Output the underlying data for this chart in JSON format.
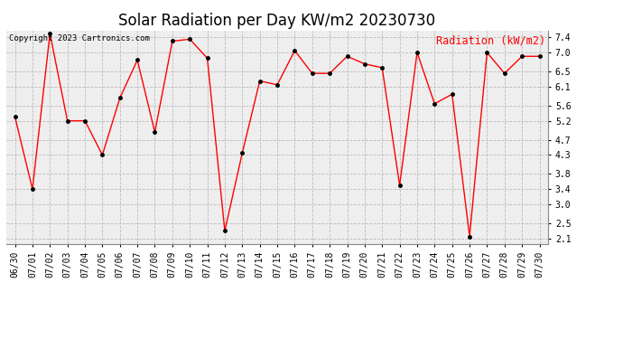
{
  "title": "Solar Radiation per Day KW/m2 20230730",
  "copyright_text": "Copyright 2023 Cartronics.com",
  "legend_label": "Radiation (kW/m2)",
  "dates": [
    "06/30",
    "07/01",
    "07/02",
    "07/03",
    "07/04",
    "07/05",
    "07/06",
    "07/07",
    "07/08",
    "07/09",
    "07/10",
    "07/11",
    "07/12",
    "07/13",
    "07/14",
    "07/15",
    "07/16",
    "07/17",
    "07/18",
    "07/19",
    "07/20",
    "07/21",
    "07/22",
    "07/23",
    "07/24",
    "07/25",
    "07/26",
    "07/27",
    "07/28",
    "07/29",
    "07/30"
  ],
  "values": [
    5.3,
    3.4,
    7.5,
    5.2,
    5.2,
    4.3,
    5.8,
    6.8,
    4.9,
    7.3,
    7.35,
    6.85,
    2.3,
    4.35,
    6.25,
    6.15,
    7.05,
    6.45,
    6.45,
    6.9,
    6.7,
    6.6,
    3.5,
    7.0,
    5.65,
    5.9,
    2.15,
    7.0,
    6.45,
    6.9,
    6.9
  ],
  "line_color": "red",
  "marker_color": "black",
  "marker_style": "o",
  "marker_size": 2.5,
  "line_width": 1.0,
  "ylim": [
    1.95,
    7.58
  ],
  "yticks": [
    2.1,
    2.5,
    3.0,
    3.4,
    3.8,
    4.3,
    4.7,
    5.2,
    5.6,
    6.1,
    6.5,
    7.0,
    7.4
  ],
  "grid_color": "#bbbbbb",
  "grid_style": "--",
  "bg_color": "#ffffff",
  "plot_bg_color": "#eeeeee",
  "title_fontsize": 12,
  "copyright_fontsize": 6.5,
  "legend_fontsize": 8.5,
  "tick_fontsize": 7
}
